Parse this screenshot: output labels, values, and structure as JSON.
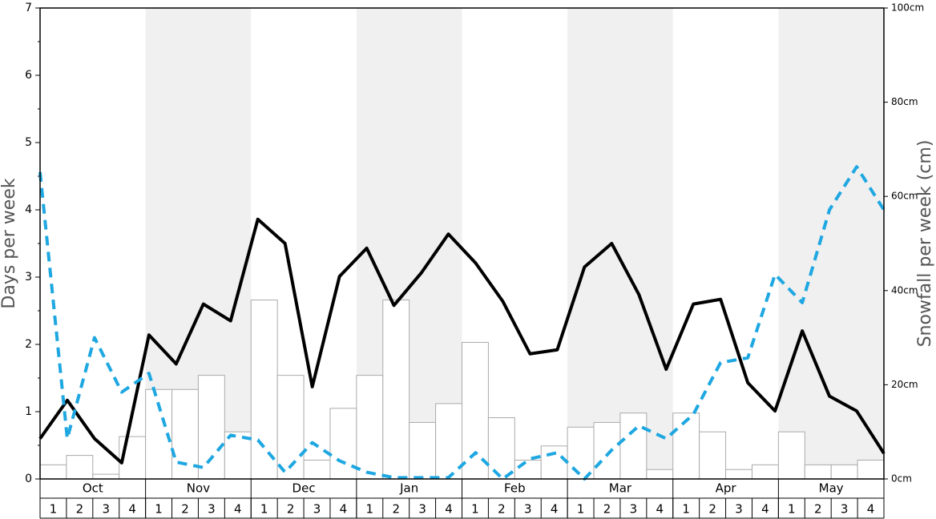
{
  "chart_data": {
    "type": "combo",
    "y_label": "Days per week",
    "y2_label": "Snowfall per week (cm)",
    "months": [
      "Oct",
      "Nov",
      "Dec",
      "Jan",
      "Feb",
      "Mar",
      "Apr",
      "May"
    ],
    "categories": [
      "1",
      "2",
      "3",
      "4",
      "1",
      "2",
      "3",
      "4",
      "1",
      "2",
      "3",
      "4",
      "1",
      "2",
      "3",
      "4",
      "1",
      "2",
      "3",
      "4",
      "1",
      "2",
      "3",
      "4",
      "1",
      "2",
      "3",
      "4",
      "1",
      "2",
      "3",
      "4"
    ],
    "ylim": [
      0,
      7
    ],
    "yticks": [
      0,
      1,
      2,
      3,
      4,
      5,
      6,
      7
    ],
    "y2lim": [
      0,
      100
    ],
    "y2ticks": [
      {
        "value": 0,
        "label": "0cm"
      },
      {
        "value": 20,
        "label": "20cm"
      },
      {
        "value": 40,
        "label": "40cm"
      },
      {
        "value": 60,
        "label": "60cm"
      },
      {
        "value": 80,
        "label": "80cm"
      },
      {
        "value": 100,
        "label": "100cm"
      }
    ],
    "shade_color": "#f0f0f0",
    "series": [
      {
        "type": "bar",
        "axis": "y2",
        "color": "#ffffff",
        "edge": "#aaaaaa",
        "values": [
          3,
          5,
          1,
          9,
          19,
          19,
          22,
          10,
          38,
          22,
          4,
          15,
          22,
          38,
          12,
          16,
          29,
          13,
          4,
          7,
          11,
          12,
          14,
          2,
          14,
          10,
          2,
          3,
          10,
          3,
          3,
          4
        ]
      },
      {
        "type": "line",
        "color": "#000000",
        "dashed": false,
        "values": [
          0.6,
          1.17,
          0.6,
          0.24,
          2.14,
          1.71,
          2.6,
          2.35,
          3.86,
          3.5,
          1.37,
          3.01,
          3.43,
          2.58,
          3.06,
          3.64,
          3.21,
          2.64,
          1.86,
          1.92,
          3.15,
          3.5,
          2.74,
          1.63,
          2.6,
          2.67,
          1.43,
          1.01,
          2.2,
          1.23,
          1.01,
          0.38
        ]
      },
      {
        "type": "line",
        "color": "#1ea7e1",
        "dashed": true,
        "values": [
          4.56,
          0.6,
          2.1,
          1.29,
          1.57,
          0.25,
          0.17,
          0.65,
          0.58,
          0.1,
          0.54,
          0.27,
          0.1,
          0.02,
          0.02,
          0.02,
          0.39,
          0,
          0.3,
          0.39,
          0,
          0.43,
          0.79,
          0.6,
          0.96,
          1.73,
          1.8,
          3.04,
          2.62,
          4.0,
          4.64,
          4.0
        ]
      }
    ]
  }
}
